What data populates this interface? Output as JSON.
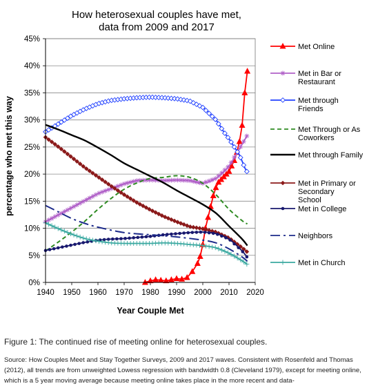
{
  "figure": {
    "caption": "Figure 1: The continued rise of meeting online for heterosexual couples.",
    "source": "Source: How Couples Meet and Stay Together Surveys, 2009 and 2017 waves. Consistent with Rosenfeld and Thomas (2012), all trends are from unweighted Lowess regression with bandwidth 0.8 (Cleveland 1979), except for meeting online, which is a 5 year moving average because meeting online takes place in the more recent and data-"
  },
  "chart_data": {
    "type": "line",
    "title_lines": [
      "How heterosexual couples have met,",
      "data from 2009 and 2017"
    ],
    "xlabel": "Year Couple Met",
    "ylabel": "percentage who met this way",
    "xlim": [
      1940,
      2020
    ],
    "ylim": [
      0,
      45
    ],
    "xticks": [
      "1940",
      "1950",
      "1960",
      "1970",
      "1980",
      "1990",
      "2000",
      "2010",
      "2020"
    ],
    "yticks": [
      "0%",
      "5%",
      "10%",
      "15%",
      "20%",
      "25%",
      "30%",
      "35%",
      "40%",
      "45%"
    ],
    "grid": "horizontal",
    "legend_position": "right",
    "series": [
      {
        "name": "Met Online",
        "color": "#ff0000",
        "marker": "triangle",
        "dash": "",
        "x": [
          1978,
          1980,
          1982,
          1984,
          1986,
          1988,
          1990,
          1992,
          1994,
          1996,
          1998,
          1999,
          2000,
          2001,
          2002,
          2003,
          2004,
          2005,
          2006,
          2007,
          2008,
          2009,
          2010,
          2011,
          2012,
          2013,
          2014,
          2015,
          2016,
          2017
        ],
        "y": [
          0,
          0.3,
          0.5,
          0.4,
          0.3,
          0.5,
          0.7,
          0.6,
          0.9,
          2,
          3.5,
          4.8,
          7,
          10,
          12,
          14,
          16,
          17.5,
          18.5,
          19,
          19.5,
          20,
          20.5,
          21.5,
          22.5,
          24,
          26,
          29,
          35,
          39
        ]
      },
      {
        "name": "Met in Bar or Restaurant",
        "color": "#b060c8",
        "marker": "star",
        "dash": "",
        "x": [
          1940,
          1950,
          1960,
          1970,
          1975,
          1980,
          1985,
          1990,
          1995,
          2000,
          2005,
          2010,
          2015,
          2017
        ],
        "y": [
          11.2,
          13.8,
          16.4,
          18.2,
          18.8,
          18.9,
          18.8,
          18.9,
          18.8,
          18.3,
          19.2,
          21.5,
          25.5,
          27.2
        ]
      },
      {
        "name": "Met through Friends",
        "color": "#2040ff",
        "marker": "diamond",
        "dash": "",
        "x": [
          1940,
          1945,
          1950,
          1955,
          1960,
          1965,
          1970,
          1975,
          1980,
          1985,
          1990,
          1995,
          2000,
          2005,
          2008,
          2010,
          2012,
          2014,
          2016,
          2017
        ],
        "y": [
          27.8,
          29.3,
          30.8,
          32,
          33,
          33.6,
          33.9,
          34.1,
          34.2,
          34.1,
          33.9,
          33.5,
          32.3,
          30,
          27.8,
          26.5,
          25,
          23.5,
          21.2,
          20.3
        ]
      },
      {
        "name": "Met Through or As Coworkers",
        "color": "#2e8b22",
        "marker": "",
        "dash": "6,4",
        "x": [
          1940,
          1945,
          1950,
          1955,
          1960,
          1965,
          1970,
          1975,
          1980,
          1985,
          1990,
          1995,
          2000,
          2005,
          2010,
          2015,
          2017
        ],
        "y": [
          5.8,
          7.5,
          9.3,
          11.3,
          13.5,
          15.5,
          17.2,
          18.4,
          19.2,
          19.4,
          19.7,
          19.4,
          18.3,
          16.2,
          13.5,
          11.4,
          10.8
        ]
      },
      {
        "name": "Met through Family",
        "color": "#000000",
        "marker": "",
        "dash": "",
        "x": [
          1940,
          1945,
          1950,
          1955,
          1960,
          1965,
          1970,
          1975,
          1980,
          1985,
          1990,
          1995,
          2000,
          2005,
          2010,
          2015,
          2017
        ],
        "y": [
          29.1,
          28.2,
          27.2,
          26.2,
          24.9,
          23.5,
          22,
          20.8,
          19.6,
          18.4,
          17,
          15.7,
          14.4,
          12.8,
          10.4,
          8,
          6.8
        ]
      },
      {
        "name": "Met in Primary or Secondary School",
        "color": "#8b1a1a",
        "marker": "diamond-filled",
        "dash": "",
        "x": [
          1940,
          1945,
          1950,
          1955,
          1960,
          1965,
          1970,
          1975,
          1980,
          1985,
          1990,
          1995,
          2000,
          2005,
          2010,
          2015,
          2017
        ],
        "y": [
          26.8,
          25,
          23.1,
          21.2,
          19.5,
          17.8,
          16.2,
          14.7,
          13.4,
          12.2,
          11.2,
          10.3,
          9.9,
          9.3,
          8.2,
          6.4,
          5.6
        ]
      },
      {
        "name": "Met in College",
        "color": "#18186e",
        "marker": "dot",
        "dash": "",
        "x": [
          1940,
          1945,
          1950,
          1955,
          1960,
          1965,
          1970,
          1975,
          1980,
          1985,
          1990,
          1995,
          2000,
          2005,
          2010,
          2015,
          2017
        ],
        "y": [
          5.9,
          6.4,
          6.9,
          7.4,
          7.8,
          8,
          8.1,
          8.3,
          8.5,
          8.8,
          9,
          9.2,
          9.3,
          9,
          8,
          5.8,
          4.6
        ]
      },
      {
        "name": "Neighbors",
        "color": "#1c2a8a",
        "marker": "",
        "dash": "14,5,3,5",
        "x": [
          1940,
          1945,
          1950,
          1955,
          1960,
          1970,
          1980,
          1990,
          2000,
          2005,
          2010,
          2015,
          2017
        ],
        "y": [
          14.2,
          13,
          11.8,
          10.9,
          10.2,
          9.2,
          8.8,
          8.4,
          7.8,
          7.3,
          6.2,
          4.7,
          3.9
        ]
      },
      {
        "name": "Met in Church",
        "color": "#3aa8a0",
        "marker": "plus",
        "dash": "",
        "x": [
          1940,
          1945,
          1950,
          1955,
          1960,
          1965,
          1970,
          1975,
          1980,
          1985,
          1990,
          1995,
          2000,
          2005,
          2010,
          2015,
          2017
        ],
        "y": [
          11,
          9.9,
          8.9,
          8.1,
          7.6,
          7.3,
          7.2,
          7.2,
          7.2,
          7.3,
          7.2,
          7,
          6.8,
          6.4,
          5.4,
          4,
          3.3
        ]
      }
    ]
  }
}
